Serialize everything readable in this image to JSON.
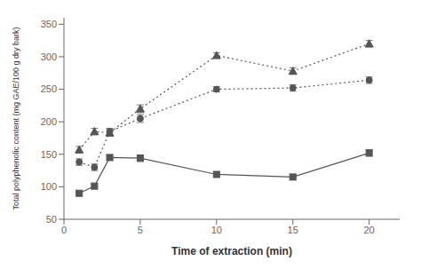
{
  "chart_data": {
    "type": "line",
    "xlabel": "Time of extraction (min)",
    "ylabel": "Total polyphenolic content (mg GAE/100 g dry bark)",
    "x": [
      1,
      2,
      3,
      5,
      10,
      15,
      20
    ],
    "series": [
      {
        "values": [
          157,
          185,
          183,
          220,
          302,
          278,
          320
        ],
        "errors": [
          5,
          5,
          5,
          6,
          4,
          5,
          5
        ],
        "color": "#555555",
        "marker": "triangle",
        "line_style": "dotted"
      },
      {
        "values": [
          138,
          130,
          185,
          205,
          250,
          252,
          264
        ],
        "errors": [
          5,
          5,
          5,
          6,
          4,
          5,
          5
        ],
        "color": "#555555",
        "marker": "circle",
        "line_style": "dotted"
      },
      {
        "values": [
          90,
          101,
          145,
          144,
          119,
          115,
          152
        ],
        "errors": [
          4,
          4,
          4,
          5,
          4,
          4,
          5
        ],
        "color": "#555555",
        "marker": "square",
        "line_style": "solid"
      }
    ],
    "xlim": [
      0,
      22
    ],
    "ylim": [
      50,
      360
    ],
    "xticks": [
      0,
      5,
      10,
      15,
      20
    ],
    "yticks": [
      50,
      100,
      150,
      200,
      250,
      300,
      350
    ],
    "grid": false
  }
}
